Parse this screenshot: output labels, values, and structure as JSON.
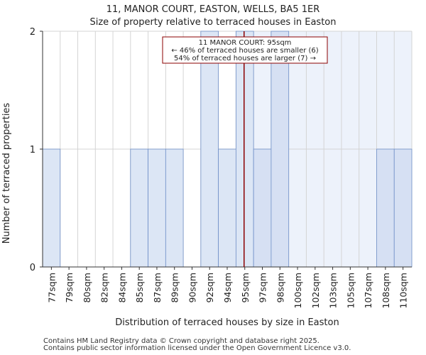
{
  "chart_data": {
    "type": "bar",
    "title": "11, MANOR COURT, EASTON, WELLS, BA5 1ER",
    "subtitle": "Size of property relative to terraced houses in Easton",
    "xlabel": "Distribution of terraced houses by size in Easton",
    "ylabel": "Number of terraced properties",
    "ylim": [
      0,
      2
    ],
    "yticks": [
      "0",
      "1",
      "2"
    ],
    "categories": [
      "77sqm",
      "79sqm",
      "80sqm",
      "82sqm",
      "84sqm",
      "85sqm",
      "87sqm",
      "89sqm",
      "90sqm",
      "92sqm",
      "94sqm",
      "95sqm",
      "97sqm",
      "98sqm",
      "100sqm",
      "102sqm",
      "103sqm",
      "105sqm",
      "107sqm",
      "108sqm",
      "110sqm"
    ],
    "values": [
      1,
      0,
      0,
      0,
      0,
      1,
      1,
      1,
      0,
      2,
      1,
      2,
      1,
      2,
      0,
      0,
      0,
      0,
      0,
      1,
      1
    ],
    "marker": {
      "value": "95sqm",
      "lines": [
        "11 MANOR COURT: 95sqm",
        "← 46% of terraced houses are smaller (6)",
        "54% of terraced houses are larger (7) →"
      ]
    },
    "colors": {
      "bar_left": "#dce6f5",
      "bar_right": "#d6e0f3",
      "edge": "#6f8fc7",
      "bg_right": "#edf2fb",
      "marker": "#8b0000"
    }
  },
  "footer": {
    "line1": "Contains HM Land Registry data © Crown copyright and database right 2025.",
    "line2": "Contains public sector information licensed under the Open Government Licence v3.0."
  }
}
